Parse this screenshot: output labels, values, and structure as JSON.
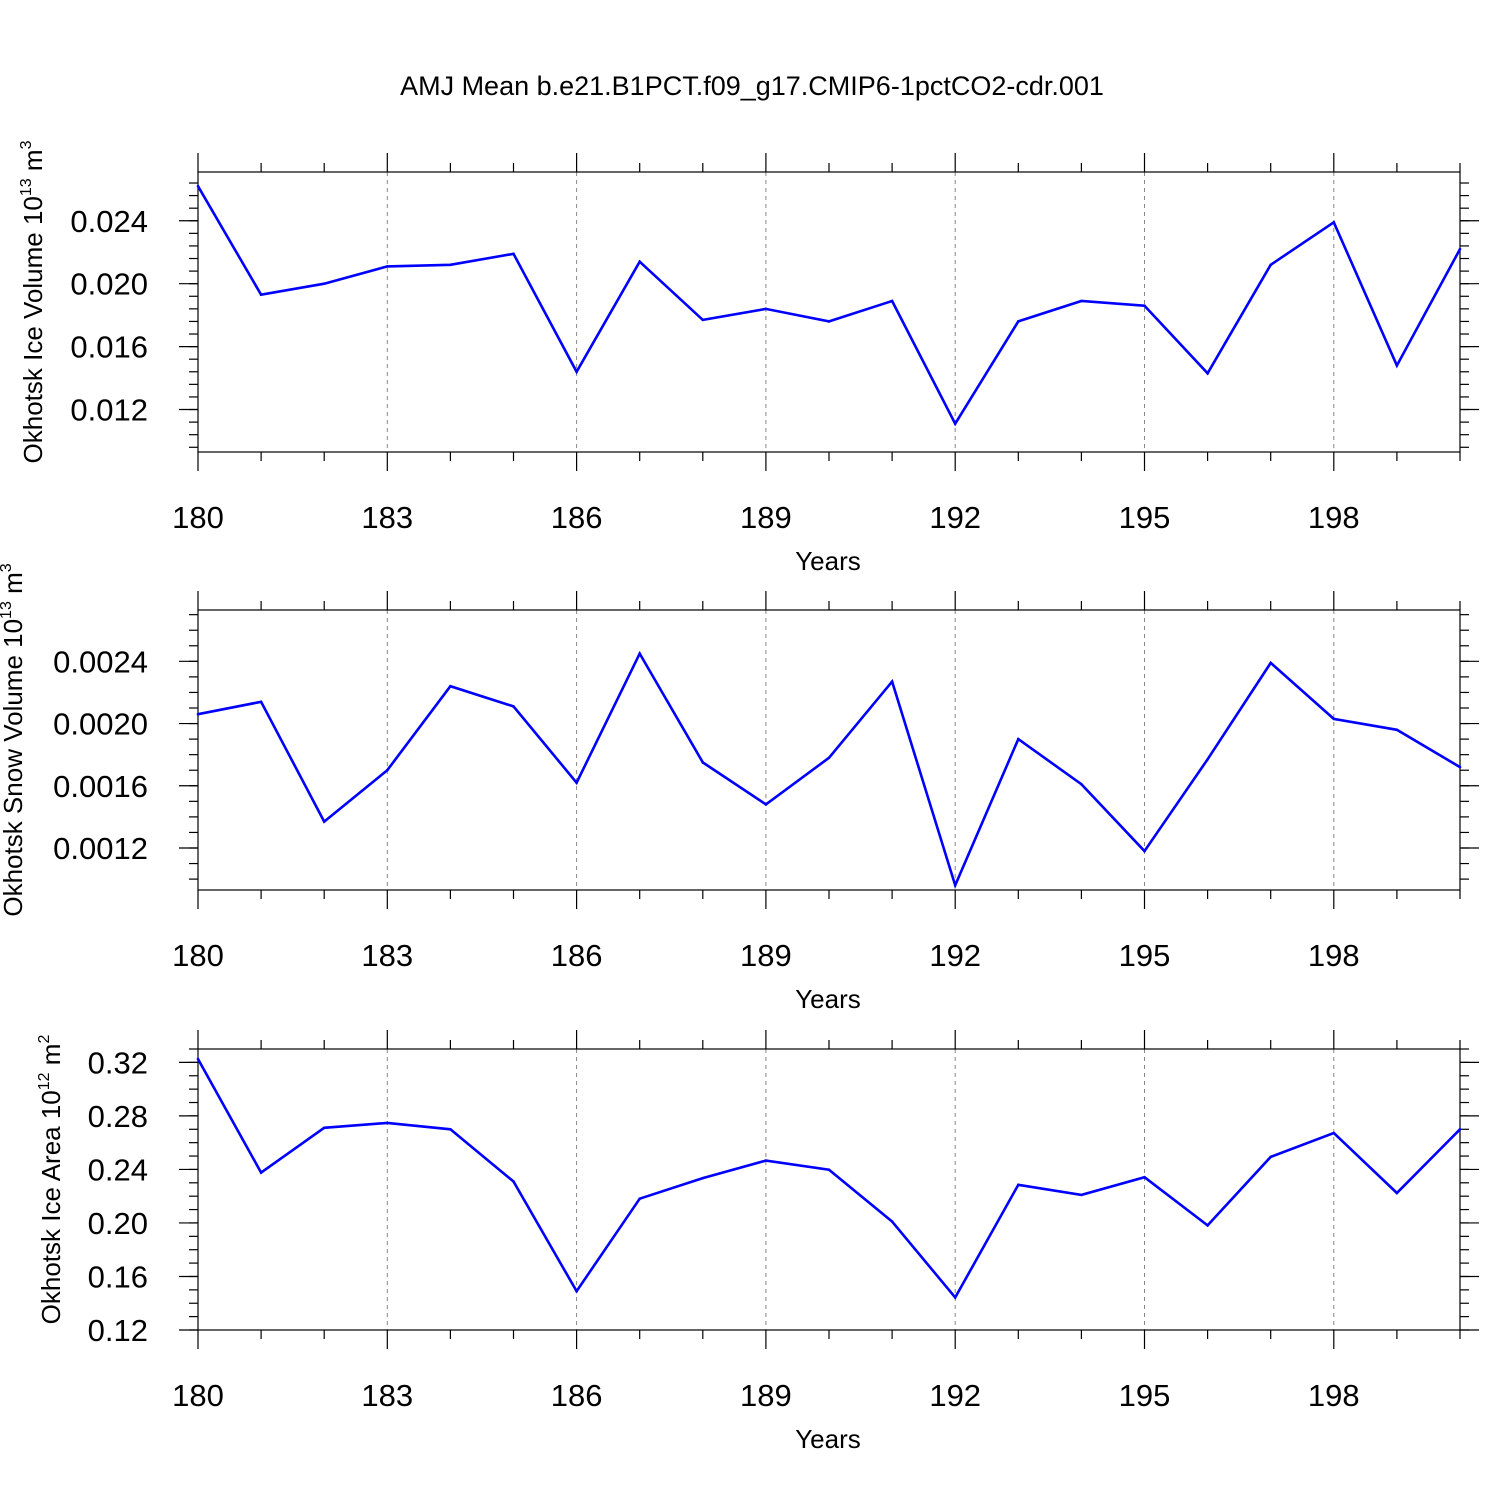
{
  "title": "AMJ Mean b.e21.B1PCT.f09_g17.CMIP6-1pctCO2-cdr.001",
  "chart_data": [
    {
      "type": "line",
      "xlabel": "Years",
      "ylabel": {
        "text": "Okhotsk Ice Volume 10",
        "exponent": "13",
        "unit_suffix": " m",
        "unit_exponent": "3"
      },
      "x": [
        180,
        181,
        182,
        183,
        184,
        185,
        186,
        187,
        188,
        189,
        190,
        191,
        192,
        193,
        194,
        195,
        196,
        197,
        198,
        199,
        200
      ],
      "x_tick_values": [
        180,
        183,
        186,
        189,
        192,
        195,
        198
      ],
      "x_tick_labels": [
        "180",
        "183",
        "186",
        "189",
        "192",
        "195",
        "198"
      ],
      "xlim": [
        180,
        200
      ],
      "ylim": [
        0.0093,
        0.0271
      ],
      "y_ticks": [
        "0.012",
        "0.016",
        "0.020",
        "0.024"
      ],
      "y_minor_step": 0.0008,
      "grid": "vertical dashed at labeled years",
      "color": "#0000ff",
      "values": [
        0.0262,
        0.0193,
        0.02,
        0.0211,
        0.0212,
        0.0219,
        0.0144,
        0.0214,
        0.0177,
        0.0184,
        0.0176,
        0.0189,
        0.0111,
        0.0176,
        0.0189,
        0.0186,
        0.0143,
        0.0212,
        0.0239,
        0.0148,
        0.0222
      ]
    },
    {
      "type": "line",
      "xlabel": "Years",
      "ylabel": {
        "text": "Okhotsk Snow Volume 10",
        "exponent": "13",
        "unit_suffix": " m",
        "unit_exponent": "3"
      },
      "x": [
        180,
        181,
        182,
        183,
        184,
        185,
        186,
        187,
        188,
        189,
        190,
        191,
        192,
        193,
        194,
        195,
        196,
        197,
        198,
        199,
        200
      ],
      "x_tick_values": [
        180,
        183,
        186,
        189,
        192,
        195,
        198
      ],
      "x_tick_labels": [
        "180",
        "183",
        "186",
        "189",
        "192",
        "195",
        "198"
      ],
      "xlim": [
        180,
        200
      ],
      "ylim": [
        0.00093,
        0.00273
      ],
      "y_ticks": [
        "0.0012",
        "0.0016",
        "0.0020",
        "0.0024"
      ],
      "y_minor_step": 0.0001,
      "grid": "vertical dashed at labeled years",
      "color": "#0000ff",
      "values": [
        0.00206,
        0.00214,
        0.00137,
        0.0017,
        0.00224,
        0.00211,
        0.00162,
        0.00245,
        0.00175,
        0.00148,
        0.00178,
        0.00227,
        0.00096,
        0.0019,
        0.00161,
        0.00118,
        0.00177,
        0.00239,
        0.00203,
        0.00196,
        0.00172
      ]
    },
    {
      "type": "line",
      "xlabel": "Years",
      "ylabel": {
        "text": "Okhotsk Ice Area 10",
        "exponent": "12",
        "unit_suffix": " m",
        "unit_exponent": "2"
      },
      "x": [
        180,
        181,
        182,
        183,
        184,
        185,
        186,
        187,
        188,
        189,
        190,
        191,
        192,
        193,
        194,
        195,
        196,
        197,
        198,
        199,
        200
      ],
      "x_tick_values": [
        180,
        183,
        186,
        189,
        192,
        195,
        198
      ],
      "x_tick_labels": [
        "180",
        "183",
        "186",
        "189",
        "192",
        "195",
        "198"
      ],
      "xlim": [
        180,
        200
      ],
      "ylim": [
        0.12,
        0.33
      ],
      "y_ticks": [
        "0.12",
        "0.16",
        "0.20",
        "0.24",
        "0.28",
        "0.32"
      ],
      "y_minor_step": 0.01,
      "grid": "vertical dashed at labeled years",
      "color": "#0000ff",
      "values": [
        0.3225,
        0.2376,
        0.2711,
        0.2748,
        0.27,
        0.231,
        0.149,
        0.2181,
        0.2335,
        0.2466,
        0.2398,
        0.2011,
        0.1443,
        0.2285,
        0.221,
        0.2342,
        0.1982,
        0.2494,
        0.2672,
        0.2224,
        0.27
      ]
    }
  ]
}
